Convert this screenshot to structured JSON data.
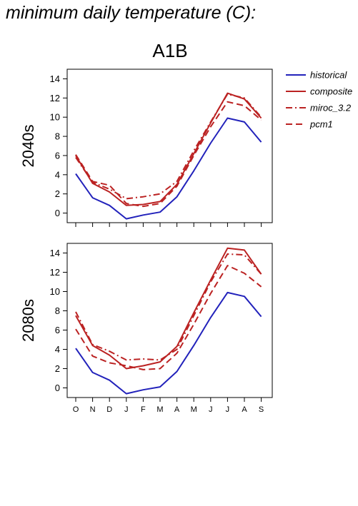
{
  "title": "minimum daily temperature (C):",
  "chart_data": {
    "type": "line",
    "scenario": "A1B",
    "categories": [
      "O",
      "N",
      "D",
      "J",
      "F",
      "M",
      "A",
      "M",
      "J",
      "J",
      "A",
      "S"
    ],
    "legend_position": "top-right",
    "legend": [
      {
        "name": "historical",
        "color": "#2222bb",
        "dash": "solid"
      },
      {
        "name": "composite",
        "color": "#bb2222",
        "dash": "solid"
      },
      {
        "name": "miroc_3.2",
        "color": "#bb2222",
        "dash": "dashdot"
      },
      {
        "name": "pcm1",
        "color": "#bb2222",
        "dash": "dashed"
      }
    ],
    "panels": [
      {
        "label": "2040s",
        "ylim": [
          -1,
          15
        ],
        "yticks": [
          0,
          2,
          4,
          6,
          8,
          10,
          12,
          14
        ],
        "series": [
          {
            "name": "historical",
            "values": [
              4.1,
              1.6,
              0.8,
              -0.6,
              -0.2,
              0.1,
              1.7,
              4.4,
              7.3,
              9.9,
              9.5,
              7.4
            ]
          },
          {
            "name": "composite",
            "values": [
              6.0,
              3.1,
              2.2,
              0.8,
              0.9,
              1.2,
              3.0,
              6.2,
              9.4,
              12.5,
              11.9,
              9.9
            ]
          },
          {
            "name": "miroc_3.2",
            "values": [
              5.8,
              3.2,
              2.5,
              1.5,
              1.7,
              2.0,
              3.3,
              6.5,
              9.5,
              12.4,
              12.0,
              10.0
            ]
          },
          {
            "name": "pcm1",
            "values": [
              6.1,
              3.3,
              2.9,
              1.0,
              0.7,
              1.0,
              2.8,
              6.0,
              9.0,
              11.6,
              11.2,
              9.7
            ]
          }
        ]
      },
      {
        "label": "2080s",
        "ylim": [
          -1,
          15
        ],
        "yticks": [
          0,
          2,
          4,
          6,
          8,
          10,
          12,
          14
        ],
        "series": [
          {
            "name": "historical",
            "values": [
              4.1,
              1.6,
              0.8,
              -0.6,
              -0.2,
              0.1,
              1.7,
              4.4,
              7.3,
              9.9,
              9.5,
              7.4
            ]
          },
          {
            "name": "composite",
            "values": [
              7.5,
              4.4,
              3.4,
              2.0,
              2.3,
              2.7,
              4.3,
              7.8,
              11.2,
              14.5,
              14.3,
              11.8
            ]
          },
          {
            "name": "miroc_3.2",
            "values": [
              7.9,
              4.5,
              3.8,
              2.9,
              3.0,
              2.9,
              4.0,
              7.5,
              11.0,
              13.9,
              13.8,
              11.8
            ]
          },
          {
            "name": "pcm1",
            "values": [
              6.1,
              3.3,
              2.6,
              2.3,
              1.9,
              2.0,
              3.6,
              6.6,
              9.8,
              12.7,
              11.9,
              10.5
            ]
          }
        ]
      }
    ]
  }
}
